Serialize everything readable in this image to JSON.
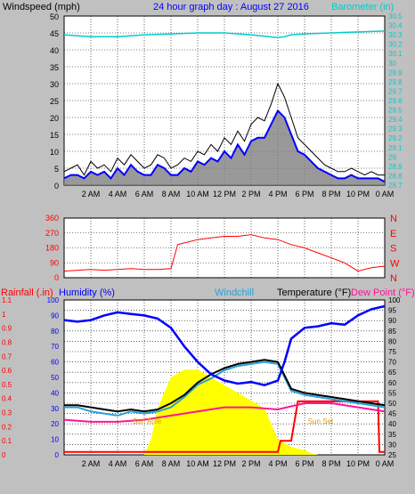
{
  "colors": {
    "background": "#c0c0c0",
    "plot": "#ffffff",
    "grid": "#000000",
    "wind_speed": "#0000ff",
    "wind_gust": "#000000",
    "wind_avg": "#808080",
    "barometer": "#00cccc",
    "direction": "#ff0000",
    "rainfall": "#ff0000",
    "humidity": "#0000ff",
    "windchill": "#2a9fd6",
    "temperature": "#000000",
    "dew_point": "#ff1493",
    "solar": "#ffff00",
    "sun_label": "#e0a000"
  },
  "chart_data": [
    {
      "type": "line",
      "title": "24 hour graph day : August 27 2016",
      "ylabel": "Windspeed (mph)",
      "y2label": "Barometer (in)",
      "xticks": [
        "2 AM",
        "4 AM",
        "6 AM",
        "8 AM",
        "10 AM",
        "12 PM",
        "2 PM",
        "4 PM",
        "6 PM",
        "8 PM",
        "10 PM",
        "0 AM"
      ],
      "ylim": [
        0,
        50
      ],
      "yticks": [
        "0",
        "5",
        "10",
        "15",
        "20",
        "25",
        "30",
        "35",
        "40",
        "45",
        "50"
      ],
      "y2lim": [
        28.7,
        30.5
      ],
      "y2ticks": [
        "28.7",
        "28.8",
        "28.9",
        "29",
        "29.1",
        "29.2",
        "29.3",
        "29.4",
        "29.5",
        "29.6",
        "29.7",
        "29.8",
        "29.9",
        "30",
        "30.1",
        "30.2",
        "30.3",
        "30.4",
        "30.5"
      ],
      "grid": true,
      "series": [
        {
          "key": "gust",
          "x": [
            0,
            0.5,
            1,
            1.5,
            2,
            2.5,
            3,
            3.5,
            4,
            4.5,
            5,
            5.5,
            6,
            6.5,
            7,
            7.5,
            8,
            8.5,
            9,
            9.5,
            10,
            10.5,
            11,
            11.5,
            12,
            12.5,
            13,
            13.5,
            14,
            14.5,
            15,
            15.5,
            16,
            16.5,
            17,
            17.5,
            18,
            18.5,
            19,
            19.5,
            20,
            20.5,
            21,
            21.5,
            22,
            22.5,
            23,
            23.5,
            24
          ],
          "values": [
            4,
            5,
            6,
            3,
            7,
            5,
            6,
            4,
            8,
            6,
            9,
            7,
            5,
            6,
            9,
            8,
            5,
            6,
            8,
            7,
            10,
            9,
            12,
            10,
            14,
            12,
            16,
            13,
            18,
            20,
            19,
            24,
            30,
            26,
            20,
            14,
            12,
            10,
            8,
            6,
            5,
            4,
            4,
            5,
            4,
            3,
            4,
            3,
            3
          ]
        },
        {
          "key": "speed",
          "x": [
            0,
            0.5,
            1,
            1.5,
            2,
            2.5,
            3,
            3.5,
            4,
            4.5,
            5,
            5.5,
            6,
            6.5,
            7,
            7.5,
            8,
            8.5,
            9,
            9.5,
            10,
            10.5,
            11,
            11.5,
            12,
            12.5,
            13,
            13.5,
            14,
            14.5,
            15,
            15.5,
            16,
            16.5,
            17,
            17.5,
            18,
            18.5,
            19,
            19.5,
            20,
            20.5,
            21,
            21.5,
            22,
            22.5,
            23,
            23.5,
            24
          ],
          "values": [
            2,
            3,
            3,
            2,
            4,
            3,
            4,
            2,
            5,
            3,
            6,
            4,
            3,
            3,
            6,
            5,
            3,
            3,
            5,
            4,
            7,
            6,
            8,
            7,
            10,
            8,
            12,
            9,
            13,
            14,
            14,
            18,
            22,
            20,
            15,
            10,
            9,
            7,
            5,
            4,
            3,
            2,
            2,
            3,
            2,
            2,
            2,
            2,
            1
          ]
        },
        {
          "key": "barometer",
          "x": [
            0,
            2,
            4,
            6,
            8,
            10,
            12,
            14,
            16,
            16.5,
            17,
            18,
            20,
            22,
            24
          ],
          "values": [
            30.3,
            30.28,
            30.28,
            30.3,
            30.31,
            30.32,
            30.32,
            30.3,
            30.27,
            30.28,
            30.3,
            30.31,
            30.32,
            30.33,
            30.34
          ]
        }
      ]
    },
    {
      "type": "scatter",
      "ylim": [
        0,
        360
      ],
      "yticks": [
        "0",
        "90",
        "180",
        "270",
        "360"
      ],
      "compass": [
        "N",
        "W",
        "S",
        "E",
        "N"
      ],
      "grid": true,
      "series": [
        {
          "key": "direction",
          "x": [
            0,
            1,
            2,
            3,
            4,
            5,
            6,
            7,
            8,
            8.5,
            9,
            10,
            11,
            12,
            13,
            14,
            15,
            16,
            17,
            18,
            19,
            20,
            21,
            22,
            23,
            24
          ],
          "values": [
            40,
            45,
            50,
            45,
            50,
            55,
            50,
            50,
            55,
            200,
            210,
            230,
            240,
            250,
            250,
            260,
            240,
            230,
            200,
            180,
            150,
            120,
            90,
            40,
            60,
            70
          ]
        }
      ]
    },
    {
      "type": "line",
      "legend": [
        "Rainfall (.in)",
        "Humidity (%)",
        "Windchill",
        "Temperature (°F)",
        "Dew Point (°F)"
      ],
      "yticks_rain": [
        "0",
        "0.1",
        "0.2",
        "0.3",
        "0.4",
        "0.5",
        "0.6",
        "0.7",
        "0.8",
        "0.9",
        "1",
        "1.1"
      ],
      "yticks_hum": [
        "0",
        "10",
        "20",
        "30",
        "40",
        "50",
        "60",
        "70",
        "80",
        "90",
        "100"
      ],
      "yticks_temp": [
        "25",
        "30",
        "35",
        "40",
        "45",
        "50",
        "55",
        "60",
        "65",
        "70",
        "75",
        "80",
        "85",
        "90",
        "95",
        "100"
      ],
      "temp_lim": [
        25,
        100
      ],
      "grid": true,
      "annotations": [
        "Sun Rise",
        "Sun Set"
      ],
      "series": [
        {
          "key": "humidity",
          "x": [
            0,
            1,
            2,
            3,
            4,
            5,
            6,
            7,
            8,
            9,
            10,
            11,
            12,
            13,
            14,
            15,
            16,
            16.5,
            17,
            18,
            19,
            20,
            21,
            22,
            23,
            24
          ],
          "values": [
            87,
            86,
            87,
            90,
            92,
            91,
            90,
            88,
            82,
            70,
            60,
            52,
            48,
            46,
            47,
            45,
            48,
            60,
            75,
            82,
            83,
            85,
            84,
            90,
            94,
            96
          ]
        },
        {
          "key": "temperature",
          "x": [
            0,
            1,
            2,
            3,
            4,
            5,
            6,
            7,
            8,
            9,
            10,
            11,
            12,
            13,
            14,
            15,
            16,
            17,
            18,
            19,
            20,
            21,
            22,
            23,
            24
          ],
          "values": [
            49,
            49,
            48,
            47,
            46,
            47,
            46,
            47,
            50,
            54,
            60,
            64,
            67,
            69,
            70,
            71,
            70,
            57,
            55,
            54,
            53,
            52,
            51,
            50,
            49
          ]
        },
        {
          "key": "windchill",
          "x": [
            0,
            1,
            2,
            3,
            4,
            5,
            6,
            7,
            8,
            9,
            10,
            11,
            12,
            13,
            14,
            15,
            16,
            17,
            18,
            19,
            20,
            21,
            22,
            23,
            24
          ],
          "values": [
            48,
            48,
            46,
            45,
            44,
            46,
            45,
            46,
            48,
            53,
            59,
            62,
            66,
            68,
            69,
            70,
            69,
            56,
            54,
            53,
            52,
            51,
            50,
            49,
            48
          ]
        },
        {
          "key": "dew_point",
          "x": [
            0,
            2,
            4,
            6,
            8,
            10,
            12,
            14,
            16,
            18,
            20,
            22,
            24
          ],
          "values": [
            42,
            41,
            41,
            42,
            44,
            46,
            48,
            48,
            47,
            50,
            50,
            48,
            46
          ]
        },
        {
          "key": "solar",
          "x": [
            0,
            6,
            6.5,
            7,
            8,
            9,
            10,
            11,
            12,
            13,
            14,
            15,
            16,
            17,
            18,
            18.5,
            19,
            24
          ],
          "values": [
            0,
            0,
            10,
            30,
            50,
            55,
            55,
            50,
            45,
            40,
            35,
            30,
            10,
            5,
            3,
            1,
            0,
            0
          ]
        },
        {
          "key": "rainfall",
          "x": [
            0,
            16,
            16.2,
            17,
            17.5,
            23.5,
            23.6,
            24
          ],
          "values": [
            0.02,
            0.02,
            0.1,
            0.1,
            0.38,
            0.38,
            0.02,
            0.02
          ]
        }
      ]
    }
  ]
}
